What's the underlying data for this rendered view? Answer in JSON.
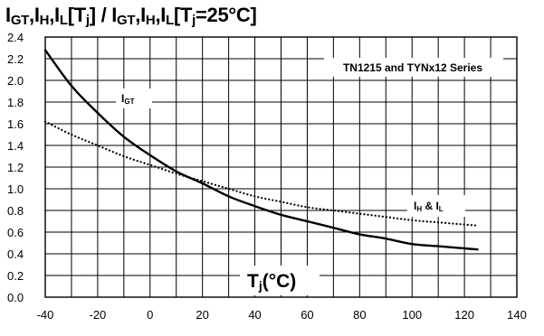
{
  "chart_data": {
    "type": "line",
    "title": {
      "main": "I",
      "sub1": "GT",
      "part2": ",I",
      "sub2": "H",
      "part3": ",I",
      "sub3": "L",
      "part4": "[T",
      "sub4": "j",
      "part5": "] / I",
      "sub5": "GT",
      "part6": ",I",
      "sub6": "H",
      "part7": ",I",
      "sub7": "L",
      "part8": "[T",
      "sub8": "j",
      "part9": "=25°C]"
    },
    "annotation": "TN1215 and TYNx12 Series",
    "xlabel": "Tj(°C)",
    "ylabel": "",
    "xlim": [
      -40,
      140
    ],
    "ylim": [
      0.0,
      2.4
    ],
    "x_ticks": [
      -40,
      -20,
      0,
      20,
      40,
      60,
      80,
      100,
      120,
      140
    ],
    "y_ticks": [
      0.0,
      0.2,
      0.4,
      0.6,
      0.8,
      1.0,
      1.2,
      1.4,
      1.6,
      1.8,
      2.0,
      2.2,
      2.4
    ],
    "x_tick_labels": [
      "-40",
      "-20",
      "0",
      "20",
      "40",
      "60",
      "80",
      "100",
      "120",
      "140"
    ],
    "y_tick_labels": [
      "0.0",
      "0.2",
      "0.4",
      "0.6",
      "0.8",
      "1.0",
      "1.2",
      "1.4",
      "1.6",
      "1.8",
      "2.0",
      "2.2",
      "2.4"
    ],
    "grid": true,
    "series": [
      {
        "name": "IGT",
        "label": "I",
        "label_sub": "GT",
        "style": "solid",
        "color": "#000000",
        "x": [
          -40,
          -30,
          -20,
          -10,
          0,
          10,
          20,
          30,
          40,
          50,
          60,
          70,
          80,
          90,
          100,
          110,
          120,
          125
        ],
        "y": [
          2.28,
          1.95,
          1.7,
          1.48,
          1.31,
          1.16,
          1.05,
          0.93,
          0.84,
          0.76,
          0.7,
          0.64,
          0.58,
          0.54,
          0.49,
          0.47,
          0.45,
          0.44
        ]
      },
      {
        "name": "IH & IL",
        "label": "I",
        "label_sub": "H",
        "label_mid": " & I",
        "label_sub2": "L",
        "style": "dotted",
        "color": "#000000",
        "x": [
          -40,
          -30,
          -20,
          -10,
          0,
          10,
          20,
          30,
          40,
          50,
          60,
          70,
          80,
          90,
          100,
          110,
          120,
          125
        ],
        "y": [
          1.62,
          1.5,
          1.4,
          1.3,
          1.22,
          1.14,
          1.07,
          1.0,
          0.93,
          0.88,
          0.83,
          0.8,
          0.77,
          0.74,
          0.71,
          0.69,
          0.67,
          0.66
        ]
      }
    ]
  }
}
